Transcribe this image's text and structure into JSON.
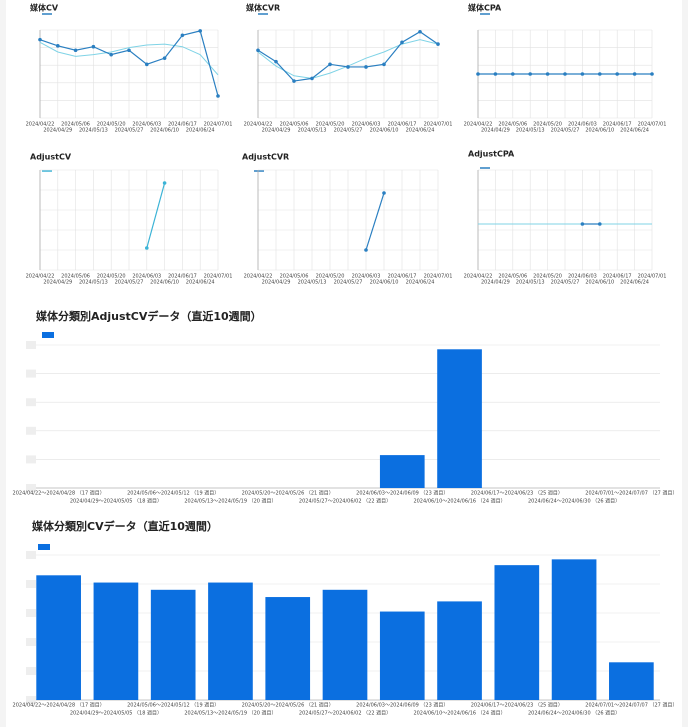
{
  "chart_data": [
    {
      "type": "line",
      "title": "媒体CV",
      "categories": [
        "2024/04/22",
        "2024/04/29",
        "2024/05/06",
        "2024/05/13",
        "2024/05/20",
        "2024/05/27",
        "2024/06/03",
        "2024/06/10",
        "2024/06/17",
        "2024/06/24",
        "2024/07/01"
      ],
      "series": [
        {
          "color": "#2a7fc1",
          "markers": true,
          "values": [
            89,
            82,
            77,
            81,
            72,
            77,
            61,
            68,
            94,
            99,
            25
          ]
        },
        {
          "color": "#7fd3e6",
          "markers": false,
          "values": [
            86,
            75,
            70,
            72,
            75,
            80,
            83,
            84,
            81,
            72,
            49
          ]
        }
      ],
      "ylim": [
        0,
        100
      ],
      "grid": true
    },
    {
      "type": "line",
      "title": "媒体CVR",
      "categories": [
        "2024/04/22",
        "2024/04/29",
        "2024/05/06",
        "2024/05/13",
        "2024/05/20",
        "2024/05/27",
        "2024/06/03",
        "2024/06/10",
        "2024/06/17",
        "2024/06/24",
        "2024/07/01"
      ],
      "series": [
        {
          "color": "#2a7fc1",
          "markers": true,
          "values": [
            77,
            64,
            42,
            45,
            61,
            58,
            58,
            61,
            86,
            98,
            84
          ]
        },
        {
          "color": "#7fd3e6",
          "markers": false,
          "values": [
            75,
            59,
            48,
            45,
            51,
            59,
            68,
            75,
            84,
            89,
            84
          ]
        }
      ],
      "ylim": [
        0,
        100
      ],
      "grid": true
    },
    {
      "type": "line",
      "title": "媒体CPA",
      "categories": [
        "2024/04/22",
        "2024/04/29",
        "2024/05/06",
        "2024/05/13",
        "2024/05/20",
        "2024/05/27",
        "2024/06/03",
        "2024/06/10",
        "2024/06/17",
        "2024/06/24",
        "2024/07/01"
      ],
      "series": [
        {
          "color": "#2a7fc1",
          "markers": true,
          "values": [
            50,
            50,
            50,
            50,
            50,
            50,
            50,
            50,
            50,
            50,
            50
          ]
        }
      ],
      "ylim": [
        0,
        100
      ],
      "grid": true
    },
    {
      "type": "line",
      "title": "AdjustCV",
      "categories": [
        "2024/04/22",
        "2024/04/29",
        "2024/05/06",
        "2024/05/13",
        "2024/05/20",
        "2024/05/27",
        "2024/06/03",
        "2024/06/10",
        "2024/06/17",
        "2024/06/24",
        "2024/07/01"
      ],
      "series": [
        {
          "color": "#3bb3d6",
          "markers": true,
          "values": [
            null,
            null,
            null,
            null,
            null,
            null,
            22,
            87,
            null,
            null,
            null
          ]
        }
      ],
      "ylim": [
        0,
        100
      ],
      "grid": true
    },
    {
      "type": "line",
      "title": "AdjustCVR",
      "categories": [
        "2024/04/22",
        "2024/04/29",
        "2024/05/06",
        "2024/05/13",
        "2024/05/20",
        "2024/05/27",
        "2024/06/03",
        "2024/06/10",
        "2024/06/17",
        "2024/06/24",
        "2024/07/01"
      ],
      "series": [
        {
          "color": "#2a7fc1",
          "markers": true,
          "values": [
            null,
            null,
            null,
            null,
            null,
            null,
            20,
            77,
            null,
            null,
            null
          ]
        }
      ],
      "ylim": [
        0,
        100
      ],
      "grid": true
    },
    {
      "type": "line",
      "title": "AdjustCPA",
      "categories": [
        "2024/04/22",
        "2024/04/29",
        "2024/05/06",
        "2024/05/13",
        "2024/05/20",
        "2024/05/27",
        "2024/06/03",
        "2024/06/10",
        "2024/06/17",
        "2024/06/24",
        "2024/07/01"
      ],
      "series": [
        {
          "color": "#2a7fc1",
          "markers": true,
          "values": [
            null,
            null,
            null,
            null,
            null,
            null,
            46,
            46,
            null,
            null,
            null
          ]
        },
        {
          "color": "#7fd3e6",
          "markers": false,
          "values": [
            46,
            46,
            46,
            46,
            46,
            46,
            46,
            46,
            46,
            46,
            46
          ]
        }
      ],
      "ylim": [
        0,
        100
      ],
      "grid": true
    },
    {
      "type": "bar",
      "title": "媒体分類別AdjustCVデータ（直近10週間）",
      "categories": [
        "2024/04/22～2024/04/28 （17 週目）",
        "2024/04/29～2024/05/05 （18 週目）",
        "2024/05/06～2024/05/12 （19 週目）",
        "2024/05/13～2024/05/19 （20 週目）",
        "2024/05/20～2024/05/26 （21 週目）",
        "2024/05/27～2024/06/02 （22 週目）",
        "2024/06/03～2024/06/09 （23 週目）",
        "2024/06/10～2024/06/16 （24 週目）",
        "2024/06/17～2024/06/23 （25 週目）",
        "2024/06/24～2024/06/30 （26 週目）",
        "2024/07/01～2024/07/07 （27 週目）"
      ],
      "series": [
        {
          "color": "#0b6fe0",
          "values": [
            null,
            null,
            null,
            null,
            null,
            null,
            23,
            97,
            null,
            null,
            null
          ]
        }
      ],
      "ylim": [
        0,
        100
      ],
      "grid": true
    },
    {
      "type": "bar",
      "title": "媒体分類別CVデータ（直近10週間）",
      "categories": [
        "2024/04/22～2024/04/28 （17 週目）",
        "2024/04/29～2024/05/05 （18 週目）",
        "2024/05/06～2024/05/12 （19 週目）",
        "2024/05/13～2024/05/19 （20 週目）",
        "2024/05/20～2024/05/26 （21 週目）",
        "2024/05/27～2024/06/02 （22 週目）",
        "2024/06/03～2024/06/09 （23 週目）",
        "2024/06/10～2024/06/16 （24 週目）",
        "2024/06/17～2024/06/23 （25 週目）",
        "2024/06/24～2024/06/30 （26 週目）",
        "2024/07/01～2024/07/07 （27 週目）"
      ],
      "series": [
        {
          "color": "#0b6fe0",
          "values": [
            86,
            81,
            76,
            81,
            71,
            76,
            61,
            68,
            93,
            97,
            26
          ]
        }
      ],
      "ylim": [
        0,
        100
      ],
      "grid": true
    }
  ]
}
